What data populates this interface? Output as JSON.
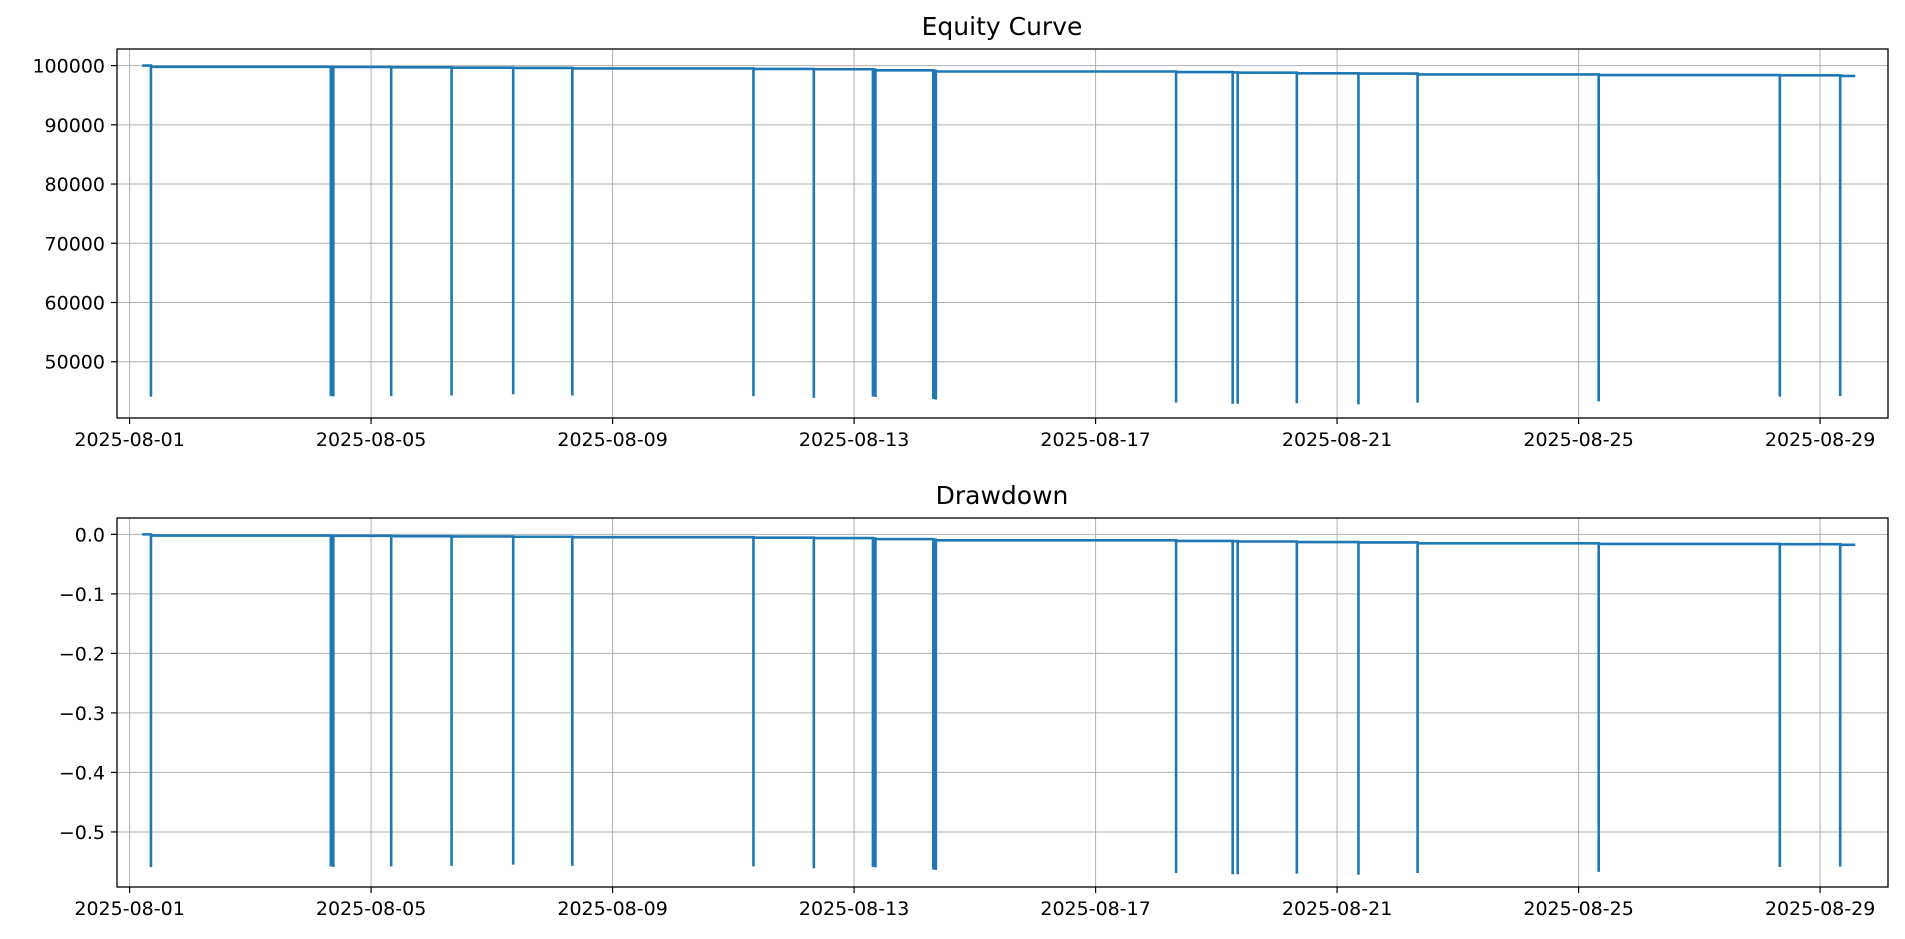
{
  "chart_data": [
    {
      "type": "line",
      "title": "Equity Curve",
      "xlabel": "",
      "ylabel": "",
      "x_range": [
        "2025-07-31T19:00",
        "2025-08-30T03:00"
      ],
      "ylim": [
        40500,
        102800
      ],
      "x_ticks": [
        "2025-08-01",
        "2025-08-05",
        "2025-08-09",
        "2025-08-13",
        "2025-08-17",
        "2025-08-21",
        "2025-08-25",
        "2025-08-29"
      ],
      "y_ticks": [
        50000,
        60000,
        70000,
        80000,
        90000,
        100000
      ],
      "y_tick_labels": [
        "50000",
        "60000",
        "70000",
        "80000",
        "90000",
        "100000"
      ],
      "grid": true,
      "line_color": "#1f77b4",
      "series": [
        {
          "points": [
            [
              "2025-08-01T05:00",
              100000
            ],
            [
              "2025-08-01T08:30",
              100000
            ],
            [
              "2025-08-01T08:30",
              44100
            ],
            [
              "2025-08-01T08:30",
              99800
            ],
            [
              "2025-08-04T08:00",
              99800
            ],
            [
              "2025-08-04T08:00",
              44200
            ],
            [
              "2025-08-04T08:00",
              99780
            ],
            [
              "2025-08-04T09:00",
              99780
            ],
            [
              "2025-08-04T09:00",
              44150
            ],
            [
              "2025-08-04T09:00",
              99760
            ],
            [
              "2025-08-05T08:00",
              99760
            ],
            [
              "2025-08-05T08:00",
              44200
            ],
            [
              "2025-08-05T08:00",
              99700
            ],
            [
              "2025-08-06T08:00",
              99700
            ],
            [
              "2025-08-06T08:00",
              44300
            ],
            [
              "2025-08-06T08:00",
              99650
            ],
            [
              "2025-08-07T08:30",
              99650
            ],
            [
              "2025-08-07T08:30",
              44500
            ],
            [
              "2025-08-07T08:30",
              99600
            ],
            [
              "2025-08-08T08:00",
              99600
            ],
            [
              "2025-08-08T08:00",
              44300
            ],
            [
              "2025-08-08T08:00",
              99520
            ],
            [
              "2025-08-11T08:00",
              99520
            ],
            [
              "2025-08-11T08:00",
              44200
            ],
            [
              "2025-08-11T08:00",
              99440
            ],
            [
              "2025-08-12T08:00",
              99440
            ],
            [
              "2025-08-12T08:00",
              43900
            ],
            [
              "2025-08-12T08:00",
              99380
            ],
            [
              "2025-08-13T07:30",
              99380
            ],
            [
              "2025-08-13T07:30",
              44100
            ],
            [
              "2025-08-13T07:30",
              99300
            ],
            [
              "2025-08-13T08:30",
              99300
            ],
            [
              "2025-08-13T08:30",
              44050
            ],
            [
              "2025-08-13T08:30",
              99200
            ],
            [
              "2025-08-14T07:30",
              99200
            ],
            [
              "2025-08-14T07:30",
              43700
            ],
            [
              "2025-08-14T07:30",
              99100
            ],
            [
              "2025-08-14T08:30",
              99100
            ],
            [
              "2025-08-14T08:30",
              43600
            ],
            [
              "2025-08-14T08:30",
              99000
            ],
            [
              "2025-08-18T08:00",
              99000
            ],
            [
              "2025-08-18T08:00",
              43100
            ],
            [
              "2025-08-18T08:00",
              98900
            ],
            [
              "2025-08-19T06:30",
              98900
            ],
            [
              "2025-08-19T06:30",
              42900
            ],
            [
              "2025-08-19T06:30",
              98850
            ],
            [
              "2025-08-19T08:30",
              98850
            ],
            [
              "2025-08-19T08:30",
              42900
            ],
            [
              "2025-08-19T08:30",
              98800
            ],
            [
              "2025-08-20T08:00",
              98800
            ],
            [
              "2025-08-20T08:00",
              43000
            ],
            [
              "2025-08-20T08:00",
              98700
            ],
            [
              "2025-08-21T08:30",
              98700
            ],
            [
              "2025-08-21T08:30",
              42800
            ],
            [
              "2025-08-21T08:30",
              98650
            ],
            [
              "2025-08-22T08:00",
              98650
            ],
            [
              "2025-08-22T08:00",
              43100
            ],
            [
              "2025-08-22T08:00",
              98500
            ],
            [
              "2025-08-25T08:00",
              98500
            ],
            [
              "2025-08-25T08:00",
              43300
            ],
            [
              "2025-08-25T08:00",
              98400
            ],
            [
              "2025-08-28T08:00",
              98400
            ],
            [
              "2025-08-28T08:00",
              44100
            ],
            [
              "2025-08-28T08:00",
              98350
            ],
            [
              "2025-08-29T08:00",
              98350
            ],
            [
              "2025-08-29T08:00",
              44200
            ],
            [
              "2025-08-29T08:00",
              98250
            ],
            [
              "2025-08-29T14:00",
              98250
            ]
          ]
        }
      ]
    },
    {
      "type": "line",
      "title": "Drawdown",
      "xlabel": "",
      "ylabel": "",
      "x_range": [
        "2025-07-31T19:00",
        "2025-08-30T03:00"
      ],
      "ylim": [
        -0.5925,
        0.0275
      ],
      "x_ticks": [
        "2025-08-01",
        "2025-08-05",
        "2025-08-09",
        "2025-08-13",
        "2025-08-17",
        "2025-08-21",
        "2025-08-25",
        "2025-08-29"
      ],
      "y_ticks": [
        -0.5,
        -0.4,
        -0.3,
        -0.2,
        -0.1,
        0.0
      ],
      "y_tick_labels": [
        "−0.5",
        "−0.4",
        "−0.3",
        "−0.2",
        "−0.1",
        "0.0"
      ],
      "grid": true,
      "line_color": "#1f77b4",
      "series": [
        {
          "points": [
            [
              "2025-08-01T05:00",
              0.0
            ],
            [
              "2025-08-01T08:30",
              0.0
            ],
            [
              "2025-08-01T08:30",
              -0.559
            ],
            [
              "2025-08-01T08:30",
              -0.002
            ],
            [
              "2025-08-04T08:00",
              -0.002
            ],
            [
              "2025-08-04T08:00",
              -0.558
            ],
            [
              "2025-08-04T08:00",
              -0.0022
            ],
            [
              "2025-08-04T09:00",
              -0.0022
            ],
            [
              "2025-08-04T09:00",
              -0.559
            ],
            [
              "2025-08-04T09:00",
              -0.0024
            ],
            [
              "2025-08-05T08:00",
              -0.0024
            ],
            [
              "2025-08-05T08:00",
              -0.558
            ],
            [
              "2025-08-05T08:00",
              -0.003
            ],
            [
              "2025-08-06T08:00",
              -0.003
            ],
            [
              "2025-08-06T08:00",
              -0.557
            ],
            [
              "2025-08-06T08:00",
              -0.0035
            ],
            [
              "2025-08-07T08:30",
              -0.0035
            ],
            [
              "2025-08-07T08:30",
              -0.555
            ],
            [
              "2025-08-07T08:30",
              -0.004
            ],
            [
              "2025-08-08T08:00",
              -0.004
            ],
            [
              "2025-08-08T08:00",
              -0.557
            ],
            [
              "2025-08-08T08:00",
              -0.0048
            ],
            [
              "2025-08-11T08:00",
              -0.0048
            ],
            [
              "2025-08-11T08:00",
              -0.558
            ],
            [
              "2025-08-11T08:00",
              -0.0056
            ],
            [
              "2025-08-12T08:00",
              -0.0056
            ],
            [
              "2025-08-12T08:00",
              -0.561
            ],
            [
              "2025-08-12T08:00",
              -0.0062
            ],
            [
              "2025-08-13T07:30",
              -0.0062
            ],
            [
              "2025-08-13T07:30",
              -0.559
            ],
            [
              "2025-08-13T07:30",
              -0.007
            ],
            [
              "2025-08-13T08:30",
              -0.007
            ],
            [
              "2025-08-13T08:30",
              -0.5595
            ],
            [
              "2025-08-13T08:30",
              -0.008
            ],
            [
              "2025-08-14T07:30",
              -0.008
            ],
            [
              "2025-08-14T07:30",
              -0.563
            ],
            [
              "2025-08-14T07:30",
              -0.009
            ],
            [
              "2025-08-14T08:30",
              -0.009
            ],
            [
              "2025-08-14T08:30",
              -0.564
            ],
            [
              "2025-08-14T08:30",
              -0.01
            ],
            [
              "2025-08-18T08:00",
              -0.01
            ],
            [
              "2025-08-18T08:00",
              -0.569
            ],
            [
              "2025-08-18T08:00",
              -0.011
            ],
            [
              "2025-08-19T06:30",
              -0.011
            ],
            [
              "2025-08-19T06:30",
              -0.571
            ],
            [
              "2025-08-19T06:30",
              -0.0115
            ],
            [
              "2025-08-19T08:30",
              -0.0115
            ],
            [
              "2025-08-19T08:30",
              -0.571
            ],
            [
              "2025-08-19T08:30",
              -0.012
            ],
            [
              "2025-08-20T08:00",
              -0.012
            ],
            [
              "2025-08-20T08:00",
              -0.57
            ],
            [
              "2025-08-20T08:00",
              -0.013
            ],
            [
              "2025-08-21T08:30",
              -0.013
            ],
            [
              "2025-08-21T08:30",
              -0.572
            ],
            [
              "2025-08-21T08:30",
              -0.0135
            ],
            [
              "2025-08-22T08:00",
              -0.0135
            ],
            [
              "2025-08-22T08:00",
              -0.569
            ],
            [
              "2025-08-22T08:00",
              -0.015
            ],
            [
              "2025-08-25T08:00",
              -0.015
            ],
            [
              "2025-08-25T08:00",
              -0.567
            ],
            [
              "2025-08-25T08:00",
              -0.016
            ],
            [
              "2025-08-28T08:00",
              -0.016
            ],
            [
              "2025-08-28T08:00",
              -0.559
            ],
            [
              "2025-08-28T08:00",
              -0.0165
            ],
            [
              "2025-08-29T08:00",
              -0.0165
            ],
            [
              "2025-08-29T08:00",
              -0.558
            ],
            [
              "2025-08-29T08:00",
              -0.0175
            ],
            [
              "2025-08-29T14:00",
              -0.0175
            ]
          ]
        }
      ]
    }
  ]
}
